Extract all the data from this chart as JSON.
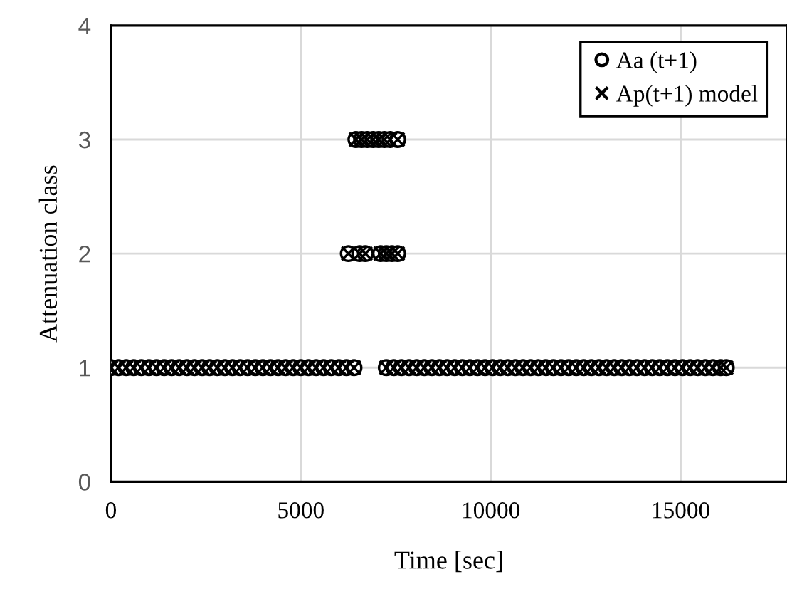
{
  "chart_data": {
    "type": "scatter",
    "xlabel": "Time [sec]",
    "ylabel": "Attenuation class",
    "x": [
      0,
      200,
      400,
      600,
      800,
      1000,
      1200,
      1400,
      1600,
      1800,
      2000,
      2200,
      2400,
      2600,
      2800,
      3000,
      3200,
      3400,
      3600,
      3800,
      4000,
      4200,
      4400,
      4600,
      4800,
      5000,
      5200,
      5400,
      5600,
      5800,
      6000,
      6200,
      6400,
      6250,
      6450,
      6550,
      6600,
      6700,
      6750,
      6900,
      7050,
      7100,
      7200,
      7250,
      7350,
      7400,
      7550,
      7550,
      7250,
      7450,
      7650,
      7850,
      8050,
      8250,
      8450,
      8650,
      8850,
      9050,
      9250,
      9450,
      9650,
      9850,
      10050,
      10250,
      10450,
      10650,
      10850,
      11050,
      11250,
      11450,
      11650,
      11850,
      12050,
      12250,
      12450,
      12650,
      12850,
      13050,
      13250,
      13450,
      13650,
      13850,
      14050,
      14250,
      14450,
      14650,
      14850,
      15050,
      15250,
      15450,
      15650,
      15850,
      16050,
      16200
    ],
    "series": [
      {
        "name": "Aa (t+1)",
        "color": "#000000",
        "marker": "circle",
        "values": [
          1,
          1,
          1,
          1,
          1,
          1,
          1,
          1,
          1,
          1,
          1,
          1,
          1,
          1,
          1,
          1,
          1,
          1,
          1,
          1,
          1,
          1,
          1,
          1,
          1,
          1,
          1,
          1,
          1,
          1,
          1,
          1,
          1,
          2,
          3,
          2,
          3,
          2,
          3,
          3,
          3,
          2,
          3,
          2,
          3,
          2,
          3,
          2,
          1,
          1,
          1,
          1,
          1,
          1,
          1,
          1,
          1,
          1,
          1,
          1,
          1,
          1,
          1,
          1,
          1,
          1,
          1,
          1,
          1,
          1,
          1,
          1,
          1,
          1,
          1,
          1,
          1,
          1,
          1,
          1,
          1,
          1,
          1,
          1,
          1,
          1,
          1,
          1,
          1,
          1,
          1,
          1,
          1,
          1
        ]
      },
      {
        "name": "Ap(t+1) model",
        "color": "#000000",
        "marker": "cross",
        "values": [
          1,
          1,
          1,
          1,
          1,
          1,
          1,
          1,
          1,
          1,
          1,
          1,
          1,
          1,
          1,
          1,
          1,
          1,
          1,
          1,
          1,
          1,
          1,
          1,
          1,
          1,
          1,
          1,
          1,
          1,
          1,
          1,
          1,
          2,
          3,
          2,
          3,
          2,
          3,
          3,
          3,
          2,
          3,
          2,
          3,
          2,
          3,
          2,
          1,
          1,
          1,
          1,
          1,
          1,
          1,
          1,
          1,
          1,
          1,
          1,
          1,
          1,
          1,
          1,
          1,
          1,
          1,
          1,
          1,
          1,
          1,
          1,
          1,
          1,
          1,
          1,
          1,
          1,
          1,
          1,
          1,
          1,
          1,
          1,
          1,
          1,
          1,
          1,
          1,
          1,
          1,
          1,
          1,
          1
        ]
      }
    ],
    "xlim": [
      0,
      17800
    ],
    "xticks": [
      0,
      5000,
      10000,
      15000
    ],
    "ylim": [
      0,
      4
    ],
    "yticks": [
      0,
      1,
      2,
      3,
      4
    ],
    "grid": true,
    "legend": "top right"
  }
}
